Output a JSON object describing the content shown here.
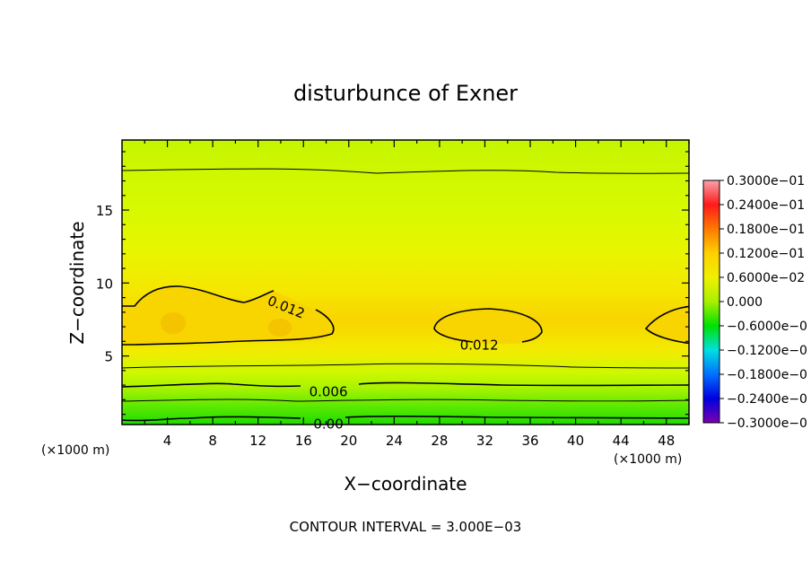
{
  "chart_data": {
    "type": "heatmap",
    "title": "disturbunce of Exner",
    "xlabel": "X−coordinate",
    "ylabel": "Z−coordinate",
    "x_unit_left": "(×1000 m)",
    "x_unit_right": "(×1000 m)",
    "xlim": [
      0,
      50
    ],
    "ylim": [
      0.3,
      19.8
    ],
    "x_ticks": [
      4,
      8,
      12,
      16,
      20,
      24,
      28,
      32,
      36,
      40,
      44,
      48
    ],
    "x_tick_labels": [
      "4",
      "8",
      "12",
      "16",
      "20",
      "24",
      "28",
      "32",
      "36",
      "40",
      "44",
      "48"
    ],
    "y_ticks": [
      5,
      10,
      15
    ],
    "y_tick_labels": [
      "5",
      "10",
      "15"
    ],
    "contour_levels": [
      0.0,
      0.006,
      0.012
    ],
    "contour_interval_label": "CONTOUR INTERVAL = 3.000E−03",
    "colorbar": {
      "min": -0.03,
      "max": 0.03,
      "labels": [
        "0.3000e−01",
        "0.2400e−01",
        "0.1800e−01",
        "0.1200e−01",
        "0.6000e−02",
        "0.000",
        "−0.6000e−0",
        "−0.1200e−0",
        "−0.1800e−0",
        "−0.2400e−0",
        "−0.3000e−0"
      ],
      "colors": [
        "#f7a3ad",
        "#ff1a1a",
        "#ff7a00",
        "#ffd000",
        "#f0f000",
        "#a8f000",
        "#00e000",
        "#00e0e0",
        "#0070ff",
        "#0000e0",
        "#7a00b0"
      ]
    },
    "z_profile": [
      {
        "z": 0.3,
        "value": -0.0015
      },
      {
        "z": 1.5,
        "value": 0.0015
      },
      {
        "z": 2.8,
        "value": 0.0045
      },
      {
        "z": 3.9,
        "value": 0.0075
      },
      {
        "z": 5.3,
        "value": 0.0108
      },
      {
        "z": 7.5,
        "value": 0.0126
      },
      {
        "z": 9.5,
        "value": 0.0112
      },
      {
        "z": 12.0,
        "value": 0.0098
      },
      {
        "z": 15.0,
        "value": 0.0085
      },
      {
        "z": 17.8,
        "value": 0.0072
      },
      {
        "z": 19.8,
        "value": 0.0062
      }
    ],
    "contour_labels": [
      {
        "text": "0.012",
        "x": 14.5,
        "z": 8.4,
        "angle": 22
      },
      {
        "text": "0.012",
        "x": 31.5,
        "z": 5.8,
        "angle": 0
      },
      {
        "text": "0.006",
        "x": 18.2,
        "z": 2.6,
        "angle": 0
      },
      {
        "text": "0.00",
        "x": 18.2,
        "z": 0.4,
        "angle": 0
      }
    ]
  }
}
